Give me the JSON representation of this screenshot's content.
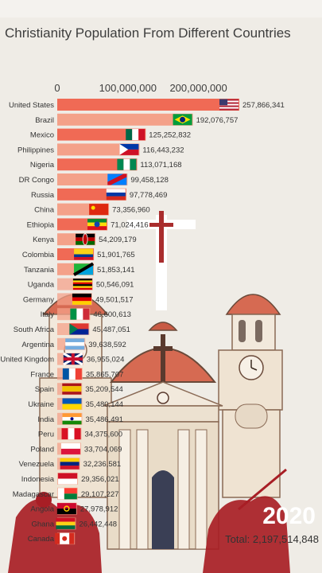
{
  "title": "Christianity Population From Different Countries",
  "year": "2020",
  "total": "Total: 2,197,514,848",
  "colors": {
    "bar_main": "#f06a55",
    "bar_alt": "#f4a189",
    "background": "#efece6",
    "text": "#3d3d3d"
  },
  "chart_data": {
    "type": "bar",
    "orientation": "horizontal",
    "title": "Christianity Population From Different Countries",
    "xticks": [
      "0",
      "100,000,000",
      "200,000,000"
    ],
    "xlim": [
      0,
      257866341
    ],
    "categories": [
      "United States",
      "Brazil",
      "Mexico",
      "Philippines",
      "Nigeria",
      "DR Congo",
      "Russia",
      "China",
      "Ethiopia",
      "Kenya",
      "Colombia",
      "Tanzania",
      "Uganda",
      "Germany",
      "Italy",
      "South Africa",
      "Argentina",
      "United Kingdom",
      "France",
      "Spain",
      "Ukraine",
      "India",
      "Peru",
      "Poland",
      "Venezuela",
      "Indonesia",
      "Madagascar",
      "Angola",
      "Ghana",
      "Canada"
    ],
    "values": [
      257866341,
      192076757,
      125252832,
      116443232,
      113071168,
      99458128,
      97778469,
      73356960,
      71024416,
      54209179,
      51901765,
      51853141,
      50546091,
      49501517,
      46600613,
      45487051,
      39638592,
      36955024,
      35865707,
      35209544,
      35480144,
      35486491,
      34375600,
      33704069,
      32236581,
      29356021,
      29107227,
      27978912,
      26442448,
      25000000
    ],
    "value_labels": [
      "257,866,341",
      "192,076,757",
      "125,252,832",
      "116,443,232",
      "113,071,168",
      "99,458,128",
      "97,778,469",
      "73,356,960",
      "71,024,416",
      "54,209,179",
      "51,901,765",
      "51,853,141",
      "50,546,091",
      "49,501,517",
      "46,600,613",
      "45,487,051",
      "39,638,592",
      "36,955,024",
      "35,865,707",
      "35,209,544",
      "35,480,144",
      "35,486,491",
      "34,375,600",
      "33,704,069",
      "32,236,581",
      "29,356,021",
      "29,107,227",
      "27,978,912",
      "26,442,448",
      ""
    ],
    "flags": [
      "us",
      "br",
      "mx",
      "ph",
      "ng",
      "cd",
      "ru",
      "cn",
      "et",
      "ke",
      "co",
      "tz",
      "ug",
      "de",
      "it",
      "za",
      "ar",
      "gb",
      "fr",
      "es",
      "ua",
      "in",
      "pe",
      "pl",
      "ve",
      "id",
      "mg",
      "ao",
      "gh",
      "ca"
    ]
  }
}
